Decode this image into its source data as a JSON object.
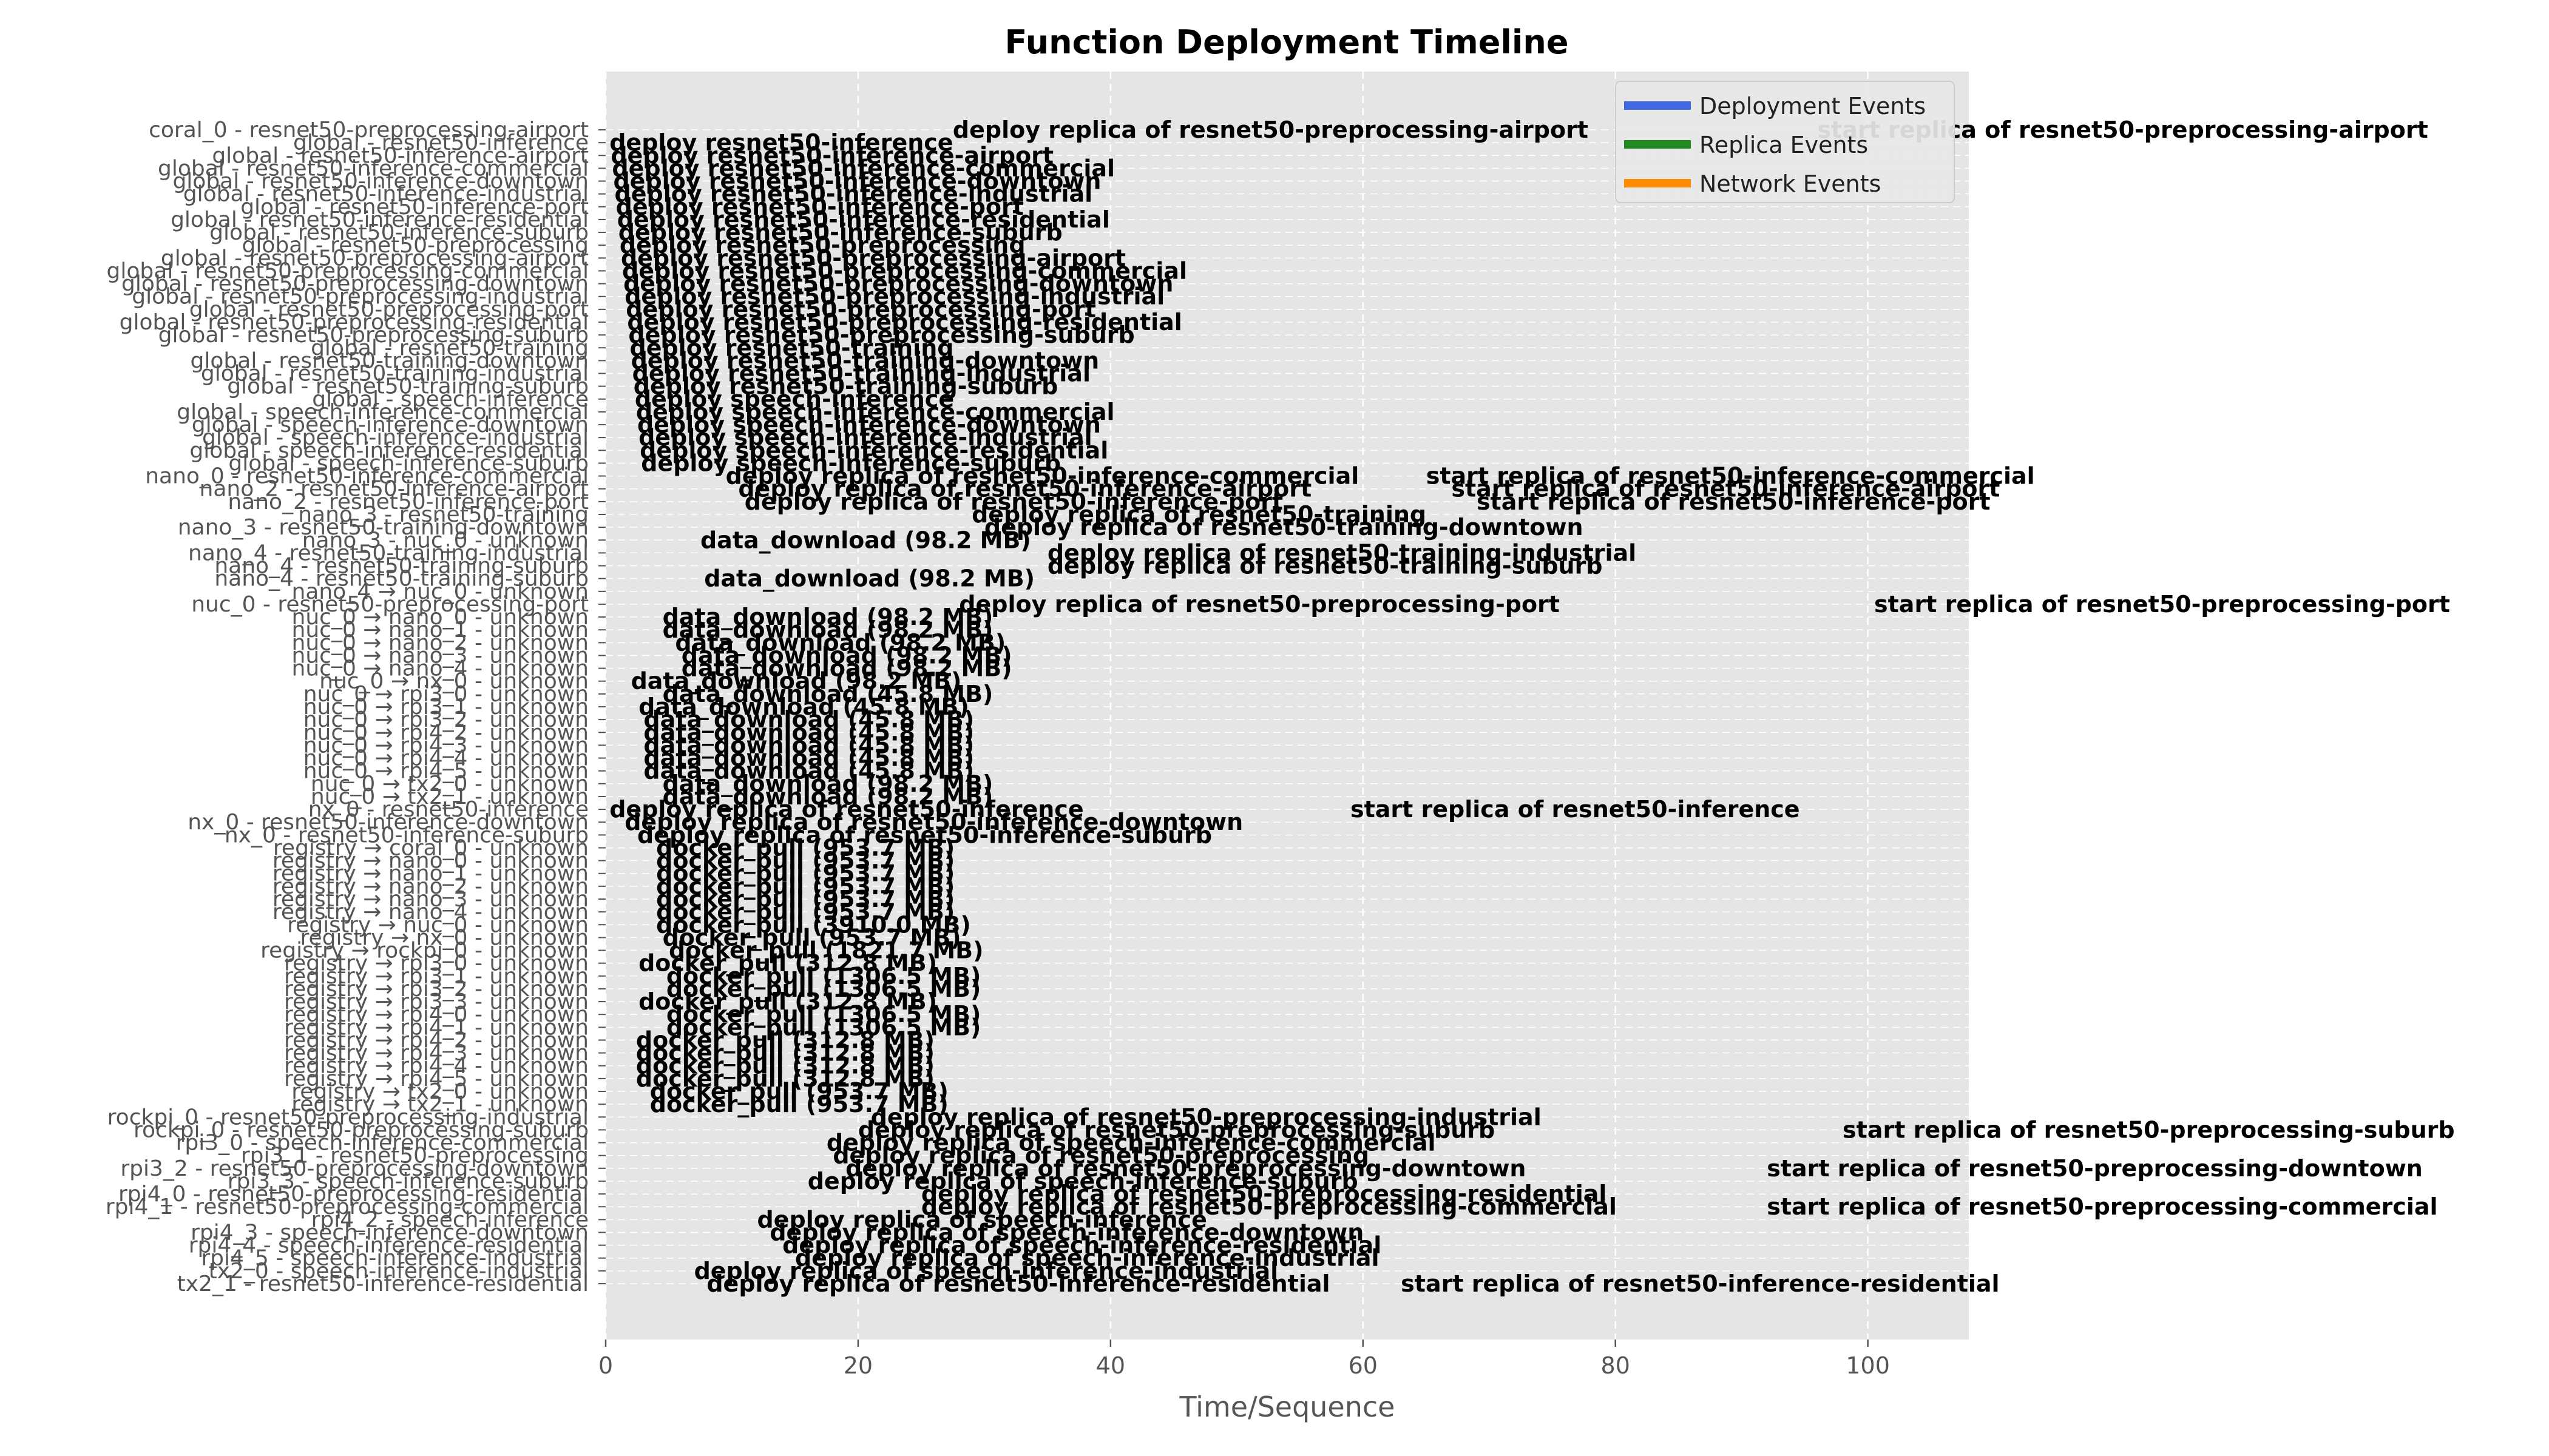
{
  "chart_data": {
    "type": "timeline",
    "title": "Function Deployment Timeline",
    "xlabel": "Time/Sequence",
    "xlim": [
      0,
      108
    ],
    "xticks": [
      0,
      20,
      40,
      60,
      80,
      100
    ],
    "grid": true,
    "legend_position": "top-right",
    "legend": [
      {
        "name": "Deployment Events",
        "color": "#4169e1"
      },
      {
        "name": "Replica Events",
        "color": "#228b22"
      },
      {
        "name": "Network Events",
        "color": "#ff8c00"
      }
    ],
    "rows": [
      "coral_0 - resnet50-preprocessing-airport",
      "global - resnet50-inference",
      "global - resnet50-inference-airport",
      "global - resnet50-inference-commercial",
      "global - resnet50-inference-downtown",
      "global - resnet50-inference-industrial",
      "global - resnet50-inference-port",
      "global - resnet50-inference-residential",
      "global - resnet50-inference-suburb",
      "global - resnet50-preprocessing",
      "global - resnet50-preprocessing-airport",
      "global - resnet50-preprocessing-commercial",
      "global - resnet50-preprocessing-downtown",
      "global - resnet50-preprocessing-industrial",
      "global - resnet50-preprocessing-port",
      "global - resnet50-preprocessing-residential",
      "global - resnet50-preprocessing-suburb",
      "global - resnet50-training",
      "global - resnet50-training-downtown",
      "global - resnet50-training-industrial",
      "global - resnet50-training-suburb",
      "global - speech-inference",
      "global - speech-inference-commercial",
      "global - speech-inference-downtown",
      "global - speech-inference-industrial",
      "global - speech-inference-residential",
      "global - speech-inference-suburb",
      "nano_0 - resnet50-inference-commercial",
      "nano_2 - resnet50-inference-airport",
      "nano_2 - resnet50-inference-port",
      "nano_3 - resnet50-training",
      "nano_3 - resnet50-training-downtown",
      "nano_3 - nuc_0 - unknown",
      "nano_4 - resnet50-training-industrial",
      "nano_4 - resnet50-training-suburb",
      "nano_4 - resnet50-training-suburb",
      "nano_4 → nuc_0 - unknown",
      "nuc_0 - resnet50-preprocessing-port",
      "nuc_0 → nano_0 - unknown",
      "nuc_0 → nano_1 - unknown",
      "nuc_0 → nano_2 - unknown",
      "nuc_0 → nano_3 - unknown",
      "nuc_0 → nano_4 - unknown",
      "nuc_0 → nx_0 - unknown",
      "nuc_0 → rpi3_0 - unknown",
      "nuc_0 → rpi3_1 - unknown",
      "nuc_0 → rpi3_2 - unknown",
      "nuc_0 → rpi4_2 - unknown",
      "nuc_0 → rpi4_3 - unknown",
      "nuc_0 → rpi4_4 - unknown",
      "nuc_0 → rpi4_5 - unknown",
      "nuc_0 → tx2_0 - unknown",
      "nuc_0 → tx2_1 - unknown",
      "nx_0 - resnet50-inference",
      "nx_0 - resnet50-inference-downtown",
      "nx_0 - resnet50-inference-suburb",
      "registry → coral_0 - unknown",
      "registry → nano_0 - unknown",
      "registry → nano_1 - unknown",
      "registry → nano_2 - unknown",
      "registry → nano_3 - unknown",
      "registry → nano_4 - unknown",
      "registry → nuc_0 - unknown",
      "registry → nx_0 - unknown",
      "registry → rockpi_0 - unknown",
      "registry → rpi3_0 - unknown",
      "registry → rpi3_1 - unknown",
      "registry → rpi3_2 - unknown",
      "registry → rpi3_3 - unknown",
      "registry → rpi4_0 - unknown",
      "registry → rpi4_1 - unknown",
      "registry → rpi4_2 - unknown",
      "registry → rpi4_3 - unknown",
      "registry → rpi4_4 - unknown",
      "registry → rpi4_5 - unknown",
      "registry → tx2_0 - unknown",
      "registry → tx2_1 - unknown",
      "rockpi_0 - resnet50-preprocessing-industrial",
      "rockpi_0 - resnet50-preprocessing-suburb",
      "rpi3_0 - speech-inference-commercial",
      "rpi3_1 - resnet50-preprocessing",
      "rpi3_2 - resnet50-preprocessing-downtown",
      "rpi3_3 - speech-inference-suburb",
      "rpi4_0 - resnet50-preprocessing-residential",
      "rpi4_1 - resnet50-preprocessing-commercial",
      "rpi4_2 - speech-inference",
      "rpi4_3 - speech-inference-downtown",
      "rpi4_4 - speech-inference-residential",
      "rpi4_5 - speech-inference-industrial",
      "tx2_0 - speech-inference-industrial",
      "tx2_1 - resnet50-inference-residential"
    ],
    "events": [
      {
        "row": 0,
        "x": 27.5,
        "label": "deploy replica of resnet50-preprocessing-airport"
      },
      {
        "row": 0,
        "x": 96,
        "label": "start replica of resnet50-preprocessing-airport"
      },
      {
        "row": 1,
        "x": 0.3,
        "label": "deploy resnet50-inference"
      },
      {
        "row": 2,
        "x": 0.4,
        "label": "deploy resnet50-inference-airport"
      },
      {
        "row": 3,
        "x": 0.5,
        "label": "deploy resnet50-inference-commercial"
      },
      {
        "row": 4,
        "x": 0.6,
        "label": "deploy resnet50-inference-downtown"
      },
      {
        "row": 5,
        "x": 0.7,
        "label": "deploy resnet50-inference-industrial"
      },
      {
        "row": 6,
        "x": 0.8,
        "label": "deploy resnet50-inference-port"
      },
      {
        "row": 7,
        "x": 0.9,
        "label": "deploy resnet50-inference-residential"
      },
      {
        "row": 8,
        "x": 1.0,
        "label": "deploy resnet50-inference-suburb"
      },
      {
        "row": 9,
        "x": 1.1,
        "label": "deploy resnet50-preprocessing"
      },
      {
        "row": 10,
        "x": 1.2,
        "label": "deploy resnet50-preprocessing-airport"
      },
      {
        "row": 11,
        "x": 1.3,
        "label": "deploy resnet50-preprocessing-commercial"
      },
      {
        "row": 12,
        "x": 1.4,
        "label": "deploy resnet50-preprocessing-downtown"
      },
      {
        "row": 13,
        "x": 1.5,
        "label": "deploy resnet50-preprocessing-industrial"
      },
      {
        "row": 14,
        "x": 1.6,
        "label": "deploy resnet50-preprocessing-port"
      },
      {
        "row": 15,
        "x": 1.7,
        "label": "deploy resnet50-preprocessing-residential"
      },
      {
        "row": 16,
        "x": 1.8,
        "label": "deploy resnet50-preprocessing-suburb"
      },
      {
        "row": 17,
        "x": 1.9,
        "label": "deploy resnet50-training"
      },
      {
        "row": 18,
        "x": 2.0,
        "label": "deploy resnet50-training-downtown"
      },
      {
        "row": 19,
        "x": 2.1,
        "label": "deploy resnet50-training-industrial"
      },
      {
        "row": 20,
        "x": 2.2,
        "label": "deploy resnet50-training-suburb"
      },
      {
        "row": 21,
        "x": 2.3,
        "label": "deploy speech-inference"
      },
      {
        "row": 22,
        "x": 2.4,
        "label": "deploy speech-inference-commercial"
      },
      {
        "row": 23,
        "x": 2.5,
        "label": "deploy speech-inference-downtown"
      },
      {
        "row": 24,
        "x": 2.6,
        "label": "deploy speech-inference-industrial"
      },
      {
        "row": 25,
        "x": 2.7,
        "label": "deploy speech-inference-residential"
      },
      {
        "row": 26,
        "x": 2.8,
        "label": "deploy speech-inference-suburb"
      },
      {
        "row": 27,
        "x": 9.5,
        "label": "deploy replica of resnet50-inference-commercial"
      },
      {
        "row": 27,
        "x": 65,
        "label": "start replica of resnet50-inference-commercial"
      },
      {
        "row": 28,
        "x": 10.5,
        "label": "deploy replica of resnet50-inference-airport"
      },
      {
        "row": 28,
        "x": 67,
        "label": "start replica of resnet50-inference-airport"
      },
      {
        "row": 29,
        "x": 11.0,
        "label": "deploy replica of resnet50-inference-port"
      },
      {
        "row": 29,
        "x": 69,
        "label": "start replica of resnet50-inference-port"
      },
      {
        "row": 30,
        "x": 29,
        "label": "deploy replica of resnet50-training"
      },
      {
        "row": 31,
        "x": 30,
        "label": "deploy replica of resnet50-training-downtown"
      },
      {
        "row": 32,
        "x": 7.5,
        "label": "data_download (98.2 MB)"
      },
      {
        "row": 33,
        "x": 35,
        "label": "deploy replica of resnet50-training-industrial"
      },
      {
        "row": 34,
        "x": 35,
        "label": "deploy replica of resnet50-training-suburb"
      },
      {
        "row": 35,
        "x": 7.8,
        "label": "data_download (98.2 MB)"
      },
      {
        "row": 37,
        "x": 28,
        "label": "deploy replica of resnet50-preprocessing-port"
      },
      {
        "row": 37,
        "x": 100.5,
        "label": "start replica of resnet50-preprocessing-port"
      },
      {
        "row": 38,
        "x": 4.5,
        "label": "data_download (98.2 MB)"
      },
      {
        "row": 39,
        "x": 4.5,
        "label": "data_download (98.2 MB)"
      },
      {
        "row": 40,
        "x": 5.5,
        "label": "data_download (98.2 MB)"
      },
      {
        "row": 41,
        "x": 6.0,
        "label": "data_download (98.2 MB)"
      },
      {
        "row": 42,
        "x": 6.0,
        "label": "data_download (98.2 MB)"
      },
      {
        "row": 43,
        "x": 2.0,
        "label": "data_download (98.2 MB)"
      },
      {
        "row": 44,
        "x": 4.5,
        "label": "data_download (45.8 MB)"
      },
      {
        "row": 45,
        "x": 2.6,
        "label": "data_download (45.8 MB)"
      },
      {
        "row": 46,
        "x": 3.0,
        "label": "data_download (45.8 MB)"
      },
      {
        "row": 47,
        "x": 3.0,
        "label": "data_download (45.8 MB)"
      },
      {
        "row": 48,
        "x": 3.0,
        "label": "data_download (45.8 MB)"
      },
      {
        "row": 49,
        "x": 3.0,
        "label": "data_download (45.8 MB)"
      },
      {
        "row": 50,
        "x": 3.0,
        "label": "data_download (45.8 MB)"
      },
      {
        "row": 51,
        "x": 4.5,
        "label": "data_download (98.2 MB)"
      },
      {
        "row": 52,
        "x": 4.5,
        "label": "data_download (98.2 MB)"
      },
      {
        "row": 53,
        "x": 0.3,
        "label": "deploy replica of resnet50-inference"
      },
      {
        "row": 53,
        "x": 59,
        "label": "start replica of resnet50-inference"
      },
      {
        "row": 54,
        "x": 1.5,
        "label": "deploy replica of resnet50-inference-downtown"
      },
      {
        "row": 55,
        "x": 2.5,
        "label": "deploy replica of resnet50-inference-suburb"
      },
      {
        "row": 56,
        "x": 4.0,
        "label": "docker_pull (953.7 MB)"
      },
      {
        "row": 57,
        "x": 4.0,
        "label": "docker_pull (953.7 MB)"
      },
      {
        "row": 58,
        "x": 4.0,
        "label": "docker_pull (953.7 MB)"
      },
      {
        "row": 59,
        "x": 4.0,
        "label": "docker_pull (953.7 MB)"
      },
      {
        "row": 60,
        "x": 4.0,
        "label": "docker_pull (953.7 MB)"
      },
      {
        "row": 61,
        "x": 4.0,
        "label": "docker_pull (953.7 MB)"
      },
      {
        "row": 62,
        "x": 4.0,
        "label": "docker_pull (3910.0 MB)"
      },
      {
        "row": 63,
        "x": 4.5,
        "label": "docker_pull (953.7 MB)"
      },
      {
        "row": 64,
        "x": 5.0,
        "label": "docker_pull (1821.7 MB)"
      },
      {
        "row": 65,
        "x": 2.6,
        "label": "docker_pull (312.8 MB)"
      },
      {
        "row": 66,
        "x": 4.8,
        "label": "docker_pull (1306.5 MB)"
      },
      {
        "row": 67,
        "x": 4.8,
        "label": "docker_pull (1306.5 MB)"
      },
      {
        "row": 68,
        "x": 2.6,
        "label": "docker_pull (312.8 MB)"
      },
      {
        "row": 69,
        "x": 4.8,
        "label": "docker_pull (1306.5 MB)"
      },
      {
        "row": 70,
        "x": 4.8,
        "label": "docker_pull (1306.5 MB)"
      },
      {
        "row": 71,
        "x": 2.4,
        "label": "docker_pull (312.8 MB)"
      },
      {
        "row": 72,
        "x": 2.4,
        "label": "docker_pull (312.8 MB)"
      },
      {
        "row": 73,
        "x": 2.4,
        "label": "docker_pull (312.8 MB)"
      },
      {
        "row": 74,
        "x": 2.4,
        "label": "docker_pull (312.8 MB)"
      },
      {
        "row": 75,
        "x": 3.5,
        "label": "docker_pull (953.7 MB)"
      },
      {
        "row": 76,
        "x": 3.5,
        "label": "docker_pull (953.7 MB)"
      },
      {
        "row": 77,
        "x": 21,
        "label": "deploy replica of resnet50-preprocessing-industrial"
      },
      {
        "row": 78,
        "x": 20,
        "label": "deploy replica of resnet50-preprocessing-suburb"
      },
      {
        "row": 78,
        "x": 98,
        "label": "start replica of resnet50-preprocessing-suburb"
      },
      {
        "row": 79,
        "x": 17.5,
        "label": "deploy replica of speech-inference-commercial"
      },
      {
        "row": 80,
        "x": 18,
        "label": "deploy replica of resnet50-preprocessing"
      },
      {
        "row": 81,
        "x": 19,
        "label": "deploy replica of resnet50-preprocessing-downtown"
      },
      {
        "row": 81,
        "x": 92,
        "label": "start replica of resnet50-preprocessing-downtown"
      },
      {
        "row": 82,
        "x": 16,
        "label": "deploy replica of speech-inference-suburb"
      },
      {
        "row": 83,
        "x": 25,
        "label": "deploy replica of resnet50-preprocessing-residential"
      },
      {
        "row": 84,
        "x": 25,
        "label": "deploy replica of resnet50-preprocessing-commercial"
      },
      {
        "row": 84,
        "x": 92,
        "label": "start replica of resnet50-preprocessing-commercial"
      },
      {
        "row": 85,
        "x": 12,
        "label": "deploy replica of speech-inference"
      },
      {
        "row": 86,
        "x": 13,
        "label": "deploy replica of speech-inference-downtown"
      },
      {
        "row": 87,
        "x": 14,
        "label": "deploy replica of speech-inference-residential"
      },
      {
        "row": 88,
        "x": 15,
        "label": "deploy replica of speech-inference-industrial"
      },
      {
        "row": 89,
        "x": 7,
        "label": "deploy replica of speech-inference-industrial"
      },
      {
        "row": 90,
        "x": 8,
        "label": "deploy replica of resnet50-inference-residential"
      },
      {
        "row": 90,
        "x": 63,
        "label": "start replica of resnet50-inference-residential"
      }
    ]
  }
}
